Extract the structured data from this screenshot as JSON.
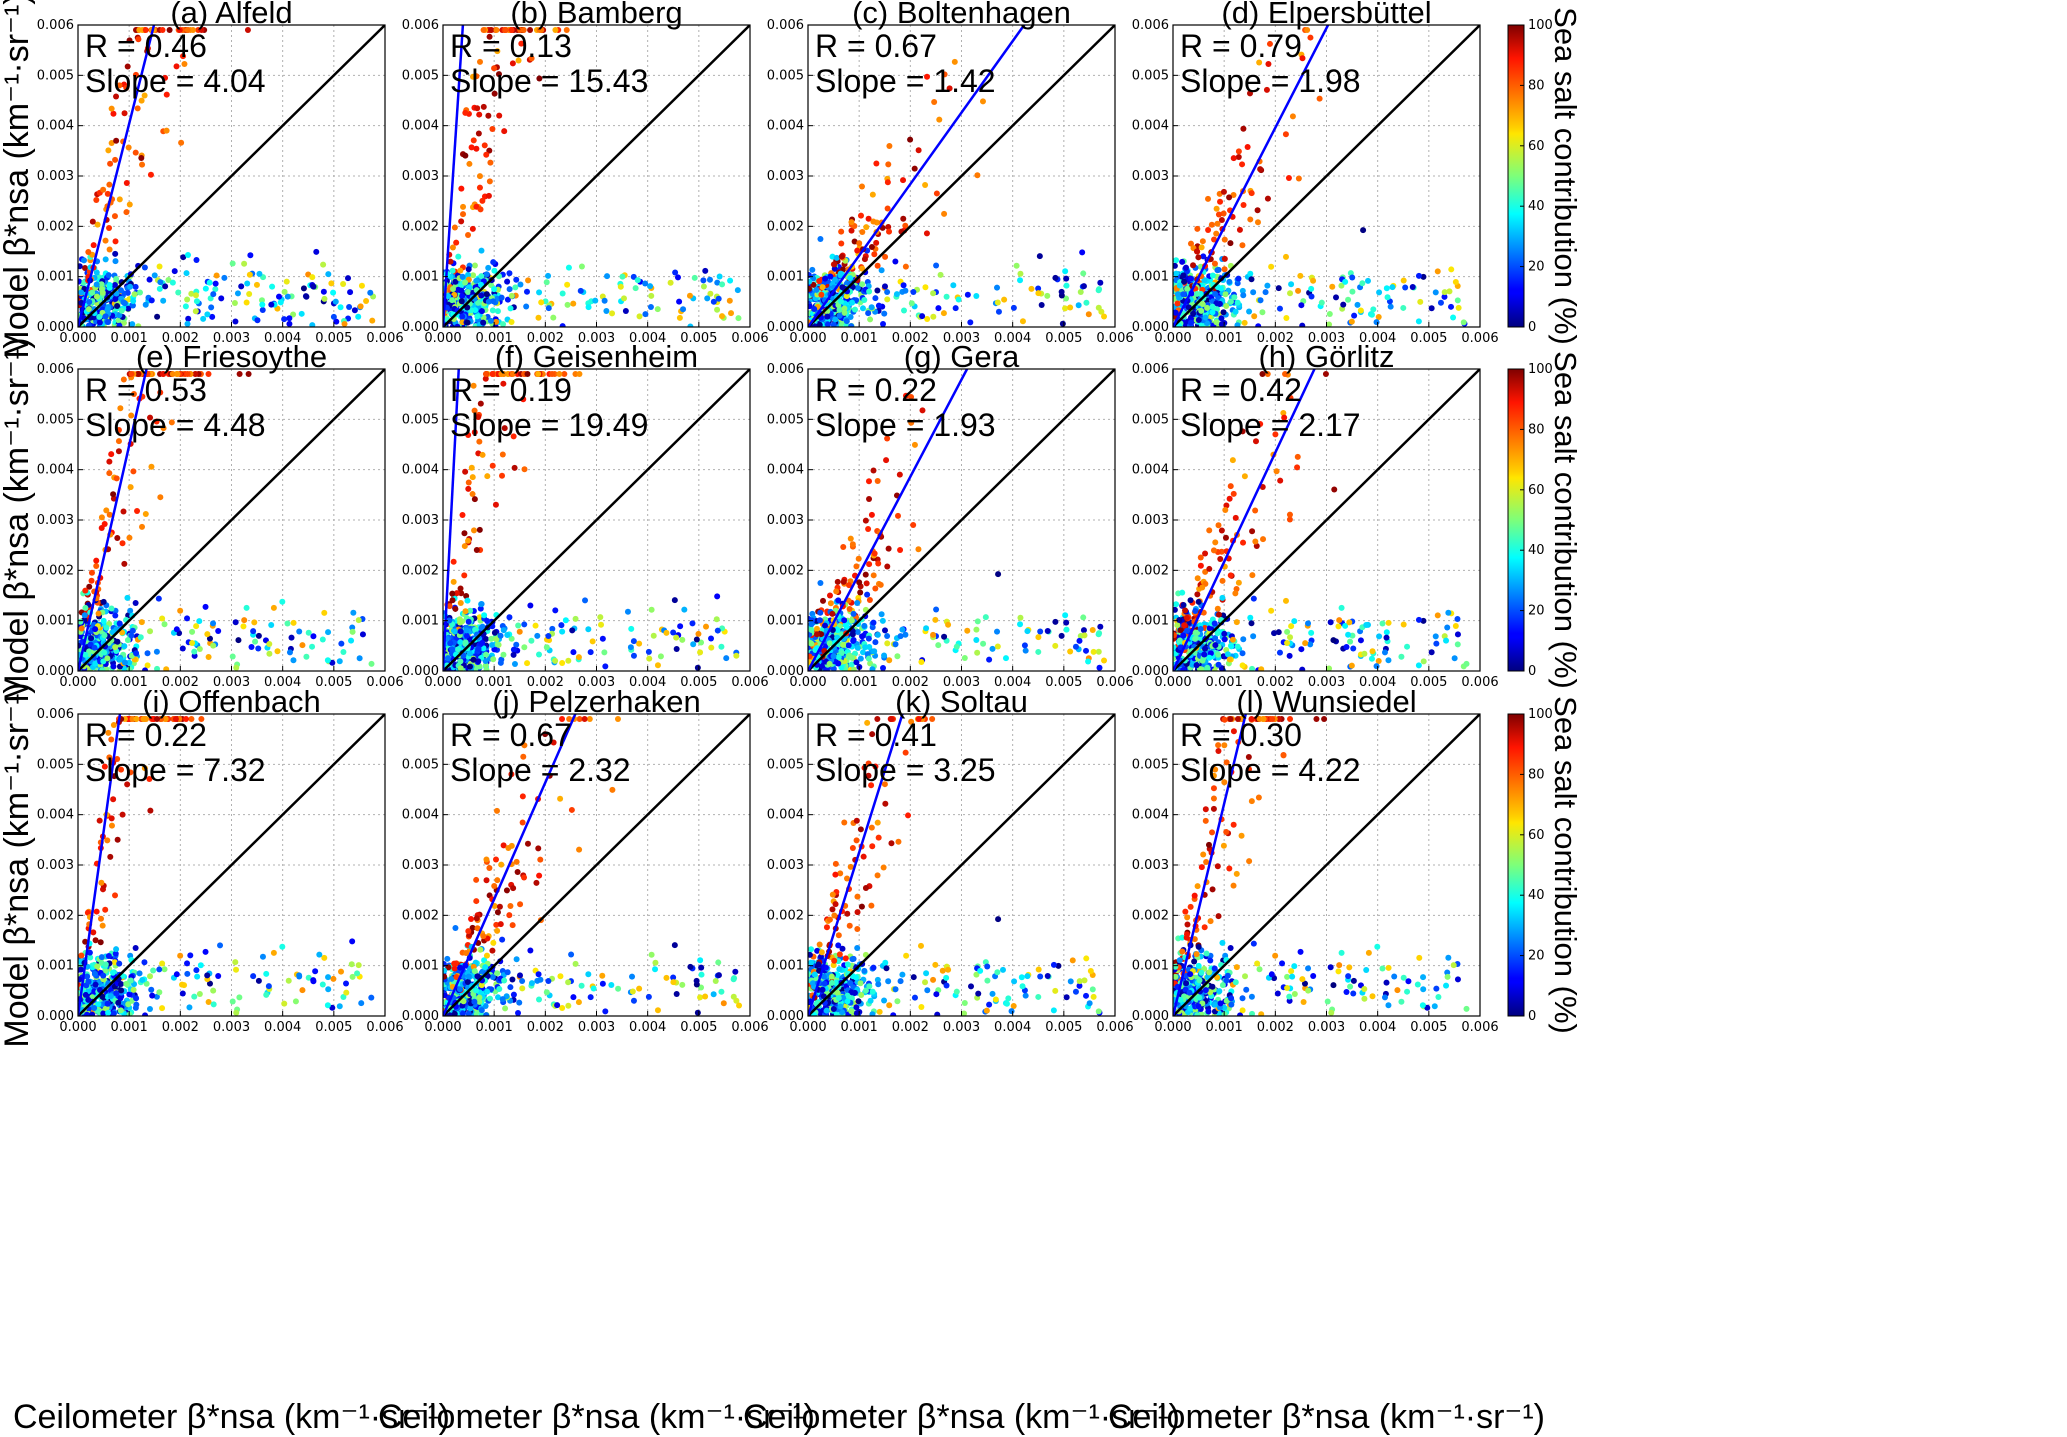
{
  "figure": {
    "xlabel": "Ceilometer β*nsa (km⁻¹·sr⁻¹)",
    "ylabel": "Model β*nsa (km⁻¹·sr⁻¹)",
    "colorbar_label": "Sea salt contribution (%)",
    "colorbar_ticks": [
      "0",
      "20",
      "40",
      "60",
      "80",
      "100"
    ],
    "tick_labels": [
      "0.000",
      "0.001",
      "0.002",
      "0.003",
      "0.004",
      "0.005",
      "0.006"
    ],
    "colors": {
      "regression_line": "#0000ff",
      "identity_line": "#000000",
      "grid": "#b0b0b0"
    }
  },
  "chart_data": [
    {
      "type": "scatter",
      "title": "(a) Alfeld",
      "r_label": "R = 0.46",
      "slope_label": "Slope = 4.04",
      "R": 0.46,
      "slope": 4.04,
      "xlim": [
        0,
        0.006
      ],
      "ylim": [
        0,
        0.006
      ],
      "xlabel": "Ceilometer β*nsa (km⁻¹·sr⁻¹)",
      "ylabel": "Model β*nsa (km⁻¹·sr⁻¹)",
      "colorbar": "Sea salt contribution (%)",
      "colorbar_range": [
        0,
        100
      ]
    },
    {
      "type": "scatter",
      "title": "(b) Bamberg",
      "r_label": "R = 0.13",
      "slope_label": "Slope = 15.43",
      "R": 0.13,
      "slope": 15.43,
      "xlim": [
        0,
        0.006
      ],
      "ylim": [
        0,
        0.006
      ],
      "xlabel": "Ceilometer β*nsa (km⁻¹·sr⁻¹)",
      "ylabel": "Model β*nsa (km⁻¹·sr⁻¹)",
      "colorbar": "Sea salt contribution (%)",
      "colorbar_range": [
        0,
        100
      ]
    },
    {
      "type": "scatter",
      "title": "(c) Boltenhagen",
      "r_label": "R = 0.67",
      "slope_label": "Slope = 1.42",
      "R": 0.67,
      "slope": 1.42,
      "xlim": [
        0,
        0.006
      ],
      "ylim": [
        0,
        0.006
      ],
      "xlabel": "Ceilometer β*nsa (km⁻¹·sr⁻¹)",
      "ylabel": "Model β*nsa (km⁻¹·sr⁻¹)",
      "colorbar": "Sea salt contribution (%)",
      "colorbar_range": [
        0,
        100
      ]
    },
    {
      "type": "scatter",
      "title": "(d) Elpersbüttel",
      "r_label": "R = 0.79",
      "slope_label": "Slope = 1.98",
      "R": 0.79,
      "slope": 1.98,
      "xlim": [
        0,
        0.006
      ],
      "ylim": [
        0,
        0.006
      ],
      "xlabel": "Ceilometer β*nsa (km⁻¹·sr⁻¹)",
      "ylabel": "Model β*nsa (km⁻¹·sr⁻¹)",
      "colorbar": "Sea salt contribution (%)",
      "colorbar_range": [
        0,
        100
      ]
    },
    {
      "type": "scatter",
      "title": "(e) Friesoythe",
      "r_label": "R = 0.53",
      "slope_label": "Slope = 4.48",
      "R": 0.53,
      "slope": 4.48,
      "xlim": [
        0,
        0.006
      ],
      "ylim": [
        0,
        0.006
      ],
      "xlabel": "Ceilometer β*nsa (km⁻¹·sr⁻¹)",
      "ylabel": "Model β*nsa (km⁻¹·sr⁻¹)",
      "colorbar": "Sea salt contribution (%)",
      "colorbar_range": [
        0,
        100
      ]
    },
    {
      "type": "scatter",
      "title": "(f) Geisenheim",
      "r_label": "R = 0.19",
      "slope_label": "Slope = 19.49",
      "R": 0.19,
      "slope": 19.49,
      "xlim": [
        0,
        0.006
      ],
      "ylim": [
        0,
        0.006
      ],
      "xlabel": "Ceilometer β*nsa (km⁻¹·sr⁻¹)",
      "ylabel": "Model β*nsa (km⁻¹·sr⁻¹)",
      "colorbar": "Sea salt contribution (%)",
      "colorbar_range": [
        0,
        100
      ]
    },
    {
      "type": "scatter",
      "title": "(g) Gera",
      "r_label": "R = 0.22",
      "slope_label": "Slope = 1.93",
      "R": 0.22,
      "slope": 1.93,
      "xlim": [
        0,
        0.006
      ],
      "ylim": [
        0,
        0.006
      ],
      "xlabel": "Ceilometer β*nsa (km⁻¹·sr⁻¹)",
      "ylabel": "Model β*nsa (km⁻¹·sr⁻¹)",
      "colorbar": "Sea salt contribution (%)",
      "colorbar_range": [
        0,
        100
      ]
    },
    {
      "type": "scatter",
      "title": "(h) Görlitz",
      "r_label": "R = 0.42",
      "slope_label": "Slope = 2.17",
      "R": 0.42,
      "slope": 2.17,
      "xlim": [
        0,
        0.006
      ],
      "ylim": [
        0,
        0.006
      ],
      "xlabel": "Ceilometer β*nsa (km⁻¹·sr⁻¹)",
      "ylabel": "Model β*nsa (km⁻¹·sr⁻¹)",
      "colorbar": "Sea salt contribution (%)",
      "colorbar_range": [
        0,
        100
      ]
    },
    {
      "type": "scatter",
      "title": "(i) Offenbach",
      "r_label": "R = 0.22",
      "slope_label": "Slope = 7.32",
      "R": 0.22,
      "slope": 7.32,
      "xlim": [
        0,
        0.006
      ],
      "ylim": [
        0,
        0.006
      ],
      "xlabel": "Ceilometer β*nsa (km⁻¹·sr⁻¹)",
      "ylabel": "Model β*nsa (km⁻¹·sr⁻¹)",
      "colorbar": "Sea salt contribution (%)",
      "colorbar_range": [
        0,
        100
      ]
    },
    {
      "type": "scatter",
      "title": "(j) Pelzerhaken",
      "r_label": "R = 0.67",
      "slope_label": "Slope = 2.32",
      "R": 0.67,
      "slope": 2.32,
      "xlim": [
        0,
        0.006
      ],
      "ylim": [
        0,
        0.006
      ],
      "xlabel": "Ceilometer β*nsa (km⁻¹·sr⁻¹)",
      "ylabel": "Model β*nsa (km⁻¹·sr⁻¹)",
      "colorbar": "Sea salt contribution (%)",
      "colorbar_range": [
        0,
        100
      ]
    },
    {
      "type": "scatter",
      "title": "(k) Soltau",
      "r_label": "R = 0.41",
      "slope_label": "Slope = 3.25",
      "R": 0.41,
      "slope": 3.25,
      "xlim": [
        0,
        0.006
      ],
      "ylim": [
        0,
        0.006
      ],
      "xlabel": "Ceilometer β*nsa (km⁻¹·sr⁻¹)",
      "ylabel": "Model β*nsa (km⁻¹·sr⁻¹)",
      "colorbar": "Sea salt contribution (%)",
      "colorbar_range": [
        0,
        100
      ]
    },
    {
      "type": "scatter",
      "title": "(l) Wunsiedel",
      "r_label": "R = 0.30",
      "slope_label": "Slope = 4.22",
      "R": 0.3,
      "slope": 4.22,
      "xlim": [
        0,
        0.006
      ],
      "ylim": [
        0,
        0.006
      ],
      "xlabel": "Ceilometer β*nsa (km⁻¹·sr⁻¹)",
      "ylabel": "Model β*nsa (km⁻¹·sr⁻¹)",
      "colorbar": "Sea salt contribution (%)",
      "colorbar_range": [
        0,
        100
      ]
    }
  ]
}
